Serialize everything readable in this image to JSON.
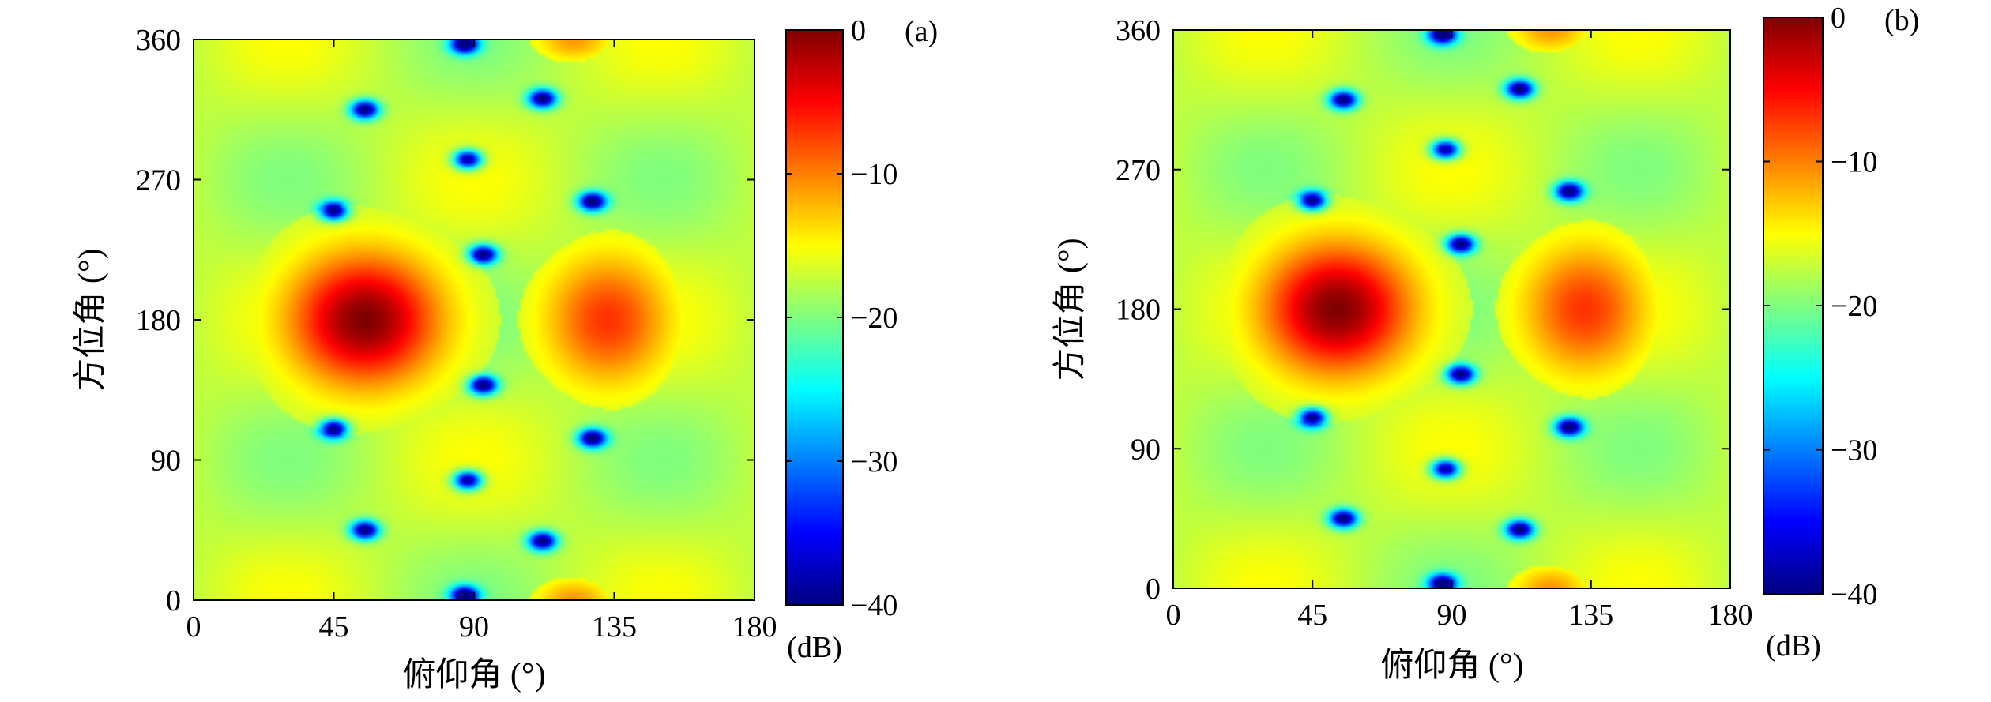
{
  "chart_data": [
    {
      "type": "heatmap",
      "panel_label": "(a)",
      "xlabel": "俯仰角 (°)",
      "ylabel": "方位角 (°)",
      "xlim": [
        0,
        180
      ],
      "ylim": [
        0,
        360
      ],
      "xticks": [
        "0",
        "45",
        "90",
        "135",
        "180"
      ],
      "yticks": [
        "0",
        "90",
        "180",
        "270",
        "360"
      ],
      "colorbar": {
        "unit": "(dB)",
        "range": [
          -40,
          0
        ],
        "ticks": [
          "0",
          "−10",
          "−20",
          "−30",
          "−40"
        ],
        "colormap": "jet"
      },
      "peaks": [
        {
          "label": "main lobe",
          "x": 55,
          "y": 180,
          "value_db": 0
        },
        {
          "label": "second lobe",
          "x": 133,
          "y": 180,
          "value_db": -7
        },
        {
          "label": "top edge lobe",
          "x": 122,
          "y": 360,
          "value_db": -11
        },
        {
          "label": "bottom edge lobe",
          "x": 122,
          "y": 0,
          "value_db": -11
        }
      ],
      "nulls_approx": [
        [
          55,
          315
        ],
        [
          88,
          283
        ],
        [
          128,
          256
        ],
        [
          112,
          322
        ],
        [
          87,
          357
        ],
        [
          45,
          250
        ],
        [
          93,
          222
        ],
        [
          55,
          45
        ],
        [
          88,
          77
        ],
        [
          128,
          104
        ],
        [
          112,
          38
        ],
        [
          87,
          3
        ],
        [
          45,
          110
        ],
        [
          93,
          138
        ]
      ]
    },
    {
      "type": "heatmap",
      "panel_label": "(b)",
      "xlabel": "俯仰角 (°)",
      "ylabel": "方位角 (°)",
      "xlim": [
        0,
        180
      ],
      "ylim": [
        0,
        360
      ],
      "xticks": [
        "0",
        "45",
        "90",
        "135",
        "180"
      ],
      "yticks": [
        "0",
        "90",
        "180",
        "270",
        "360"
      ],
      "colorbar": {
        "unit": "(dB)",
        "range": [
          -40,
          0
        ],
        "ticks": [
          "0",
          "−10",
          "−20",
          "−30",
          "−40"
        ],
        "colormap": "jet"
      },
      "peaks": [
        {
          "label": "main lobe",
          "x": 53,
          "y": 180,
          "value_db": 0
        },
        {
          "label": "second lobe",
          "x": 133,
          "y": 180,
          "value_db": -7
        },
        {
          "label": "top edge lobe",
          "x": 122,
          "y": 360,
          "value_db": -11
        },
        {
          "label": "bottom edge lobe",
          "x": 122,
          "y": 0,
          "value_db": -11
        }
      ],
      "nulls_approx": [
        [
          55,
          315
        ],
        [
          88,
          283
        ],
        [
          128,
          256
        ],
        [
          112,
          322
        ],
        [
          87,
          357
        ],
        [
          45,
          250
        ],
        [
          93,
          222
        ],
        [
          55,
          45
        ],
        [
          88,
          77
        ],
        [
          128,
          104
        ],
        [
          112,
          38
        ],
        [
          87,
          3
        ],
        [
          45,
          110
        ],
        [
          93,
          138
        ]
      ]
    }
  ]
}
